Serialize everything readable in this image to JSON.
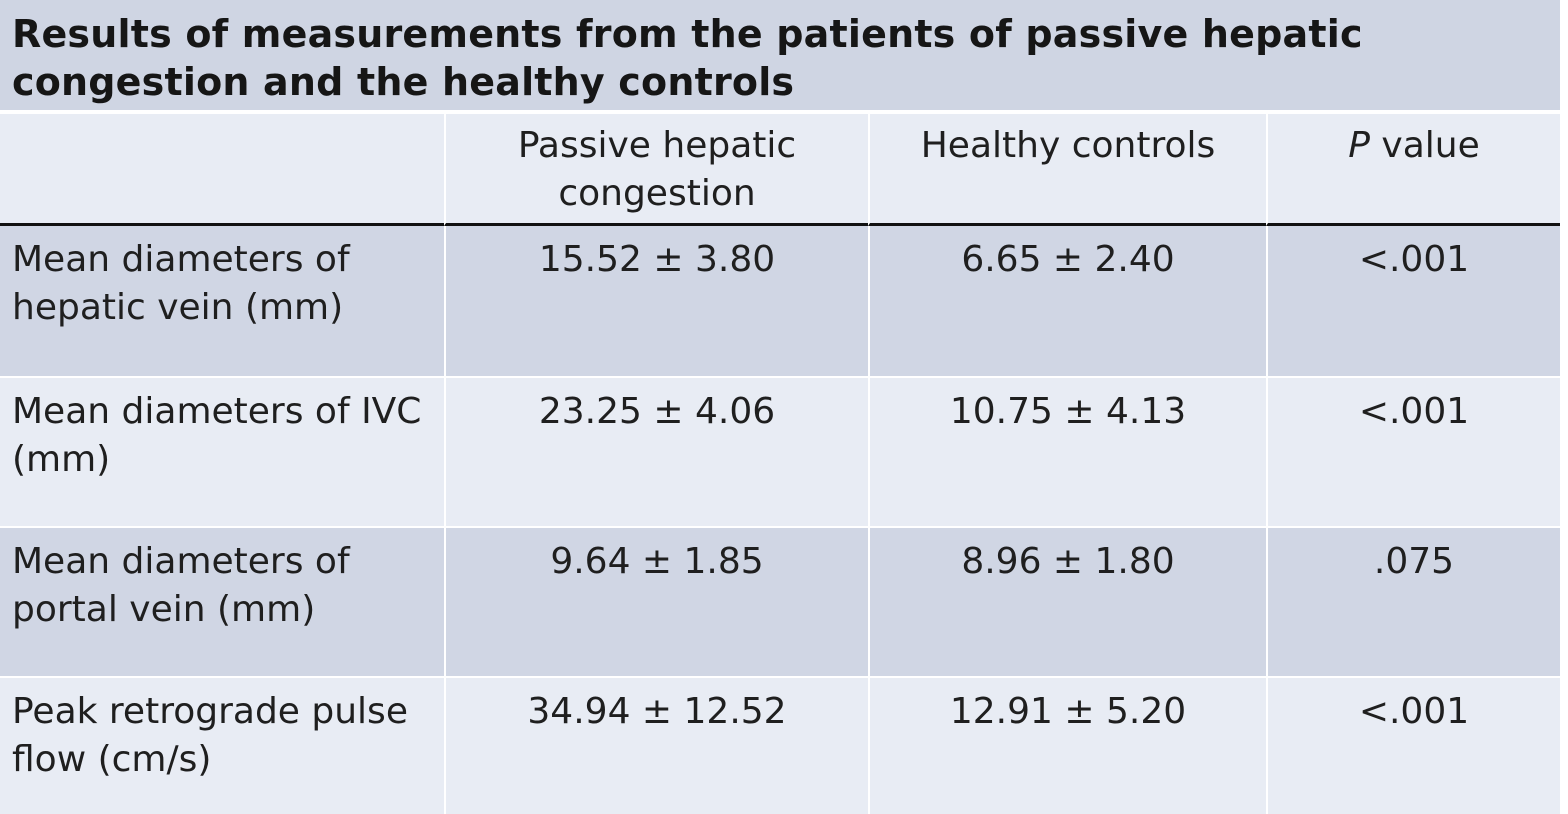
{
  "table": {
    "title": "Results of measurements from the patients of passive hepatic congestion and the healthy controls",
    "columns": {
      "label": "",
      "passive_hepatic_congestion": "Passive hepatic congestion",
      "healthy_controls": "Healthy controls",
      "p_value_italic": "P",
      "p_value_rest": " value"
    },
    "rows": [
      {
        "label": "Mean diameters of hepatic vein (mm)",
        "passive": "15.52 ± 3.80",
        "healthy": "6.65 ± 2.40",
        "p": "<.001"
      },
      {
        "label": "Mean diameters of IVC (mm)",
        "passive": "23.25 ± 4.06",
        "healthy": "10.75 ± 4.13",
        "p": "<.001"
      },
      {
        "label": "Mean diameters of portal vein (mm)",
        "passive": "9.64 ± 1.85",
        "healthy": "8.96 ± 1.80",
        "p": ".075"
      },
      {
        "label": "Peak retrograde pulse flow (cm/s)",
        "passive": "34.94 ± 12.52",
        "healthy": "12.91 ± 5.20",
        "p": "<.001"
      }
    ]
  },
  "colors": {
    "title_background": "#cfd5e3",
    "dark_row": "#d0d6e4",
    "light_row": "#e8ecf4",
    "header_rule": "#111111"
  }
}
